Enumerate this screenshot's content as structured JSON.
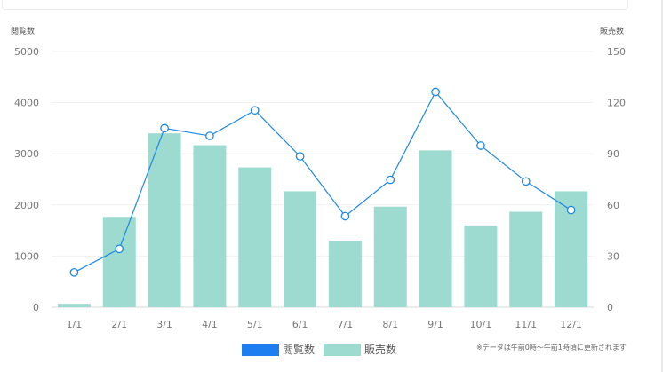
{
  "chart_data": {
    "type": "bar",
    "categories": [
      "1/1",
      "2/1",
      "3/1",
      "4/1",
      "5/1",
      "6/1",
      "7/1",
      "8/1",
      "9/1",
      "10/1",
      "11/1",
      "12/1"
    ],
    "series": [
      {
        "name": "閲覧数",
        "type": "line",
        "axis": "left",
        "color": "#1e88e5",
        "values": [
          680,
          1140,
          3500,
          3350,
          3850,
          2950,
          1780,
          2490,
          4210,
          3160,
          2460,
          1900
        ]
      },
      {
        "name": "販売数",
        "type": "bar",
        "axis": "right",
        "color": "#9ddbd0",
        "values": [
          2,
          53,
          102,
          95,
          82,
          68,
          39,
          59,
          92,
          48,
          56,
          68
        ]
      }
    ],
    "left_axis": {
      "label": "閲覧数",
      "ylim": [
        0,
        5000
      ],
      "ticks": [
        0,
        1000,
        2000,
        3000,
        4000,
        5000
      ]
    },
    "right_axis": {
      "label": "販売数",
      "ylim": [
        0,
        150
      ],
      "ticks": [
        0,
        30,
        60,
        90,
        120,
        150
      ]
    },
    "legend_position": "bottom",
    "grid": true
  },
  "labels": {
    "left_axis_title": "閲覧数",
    "right_axis_title": "販売数",
    "legend_views": "閲覧数",
    "legend_sales": "販売数",
    "note": "※データは午前0時～午前1時頃に更新されます"
  },
  "colors": {
    "line": "#1e88e5",
    "bar": "#9ddbd0",
    "legend_line": "#1e7ef0"
  }
}
